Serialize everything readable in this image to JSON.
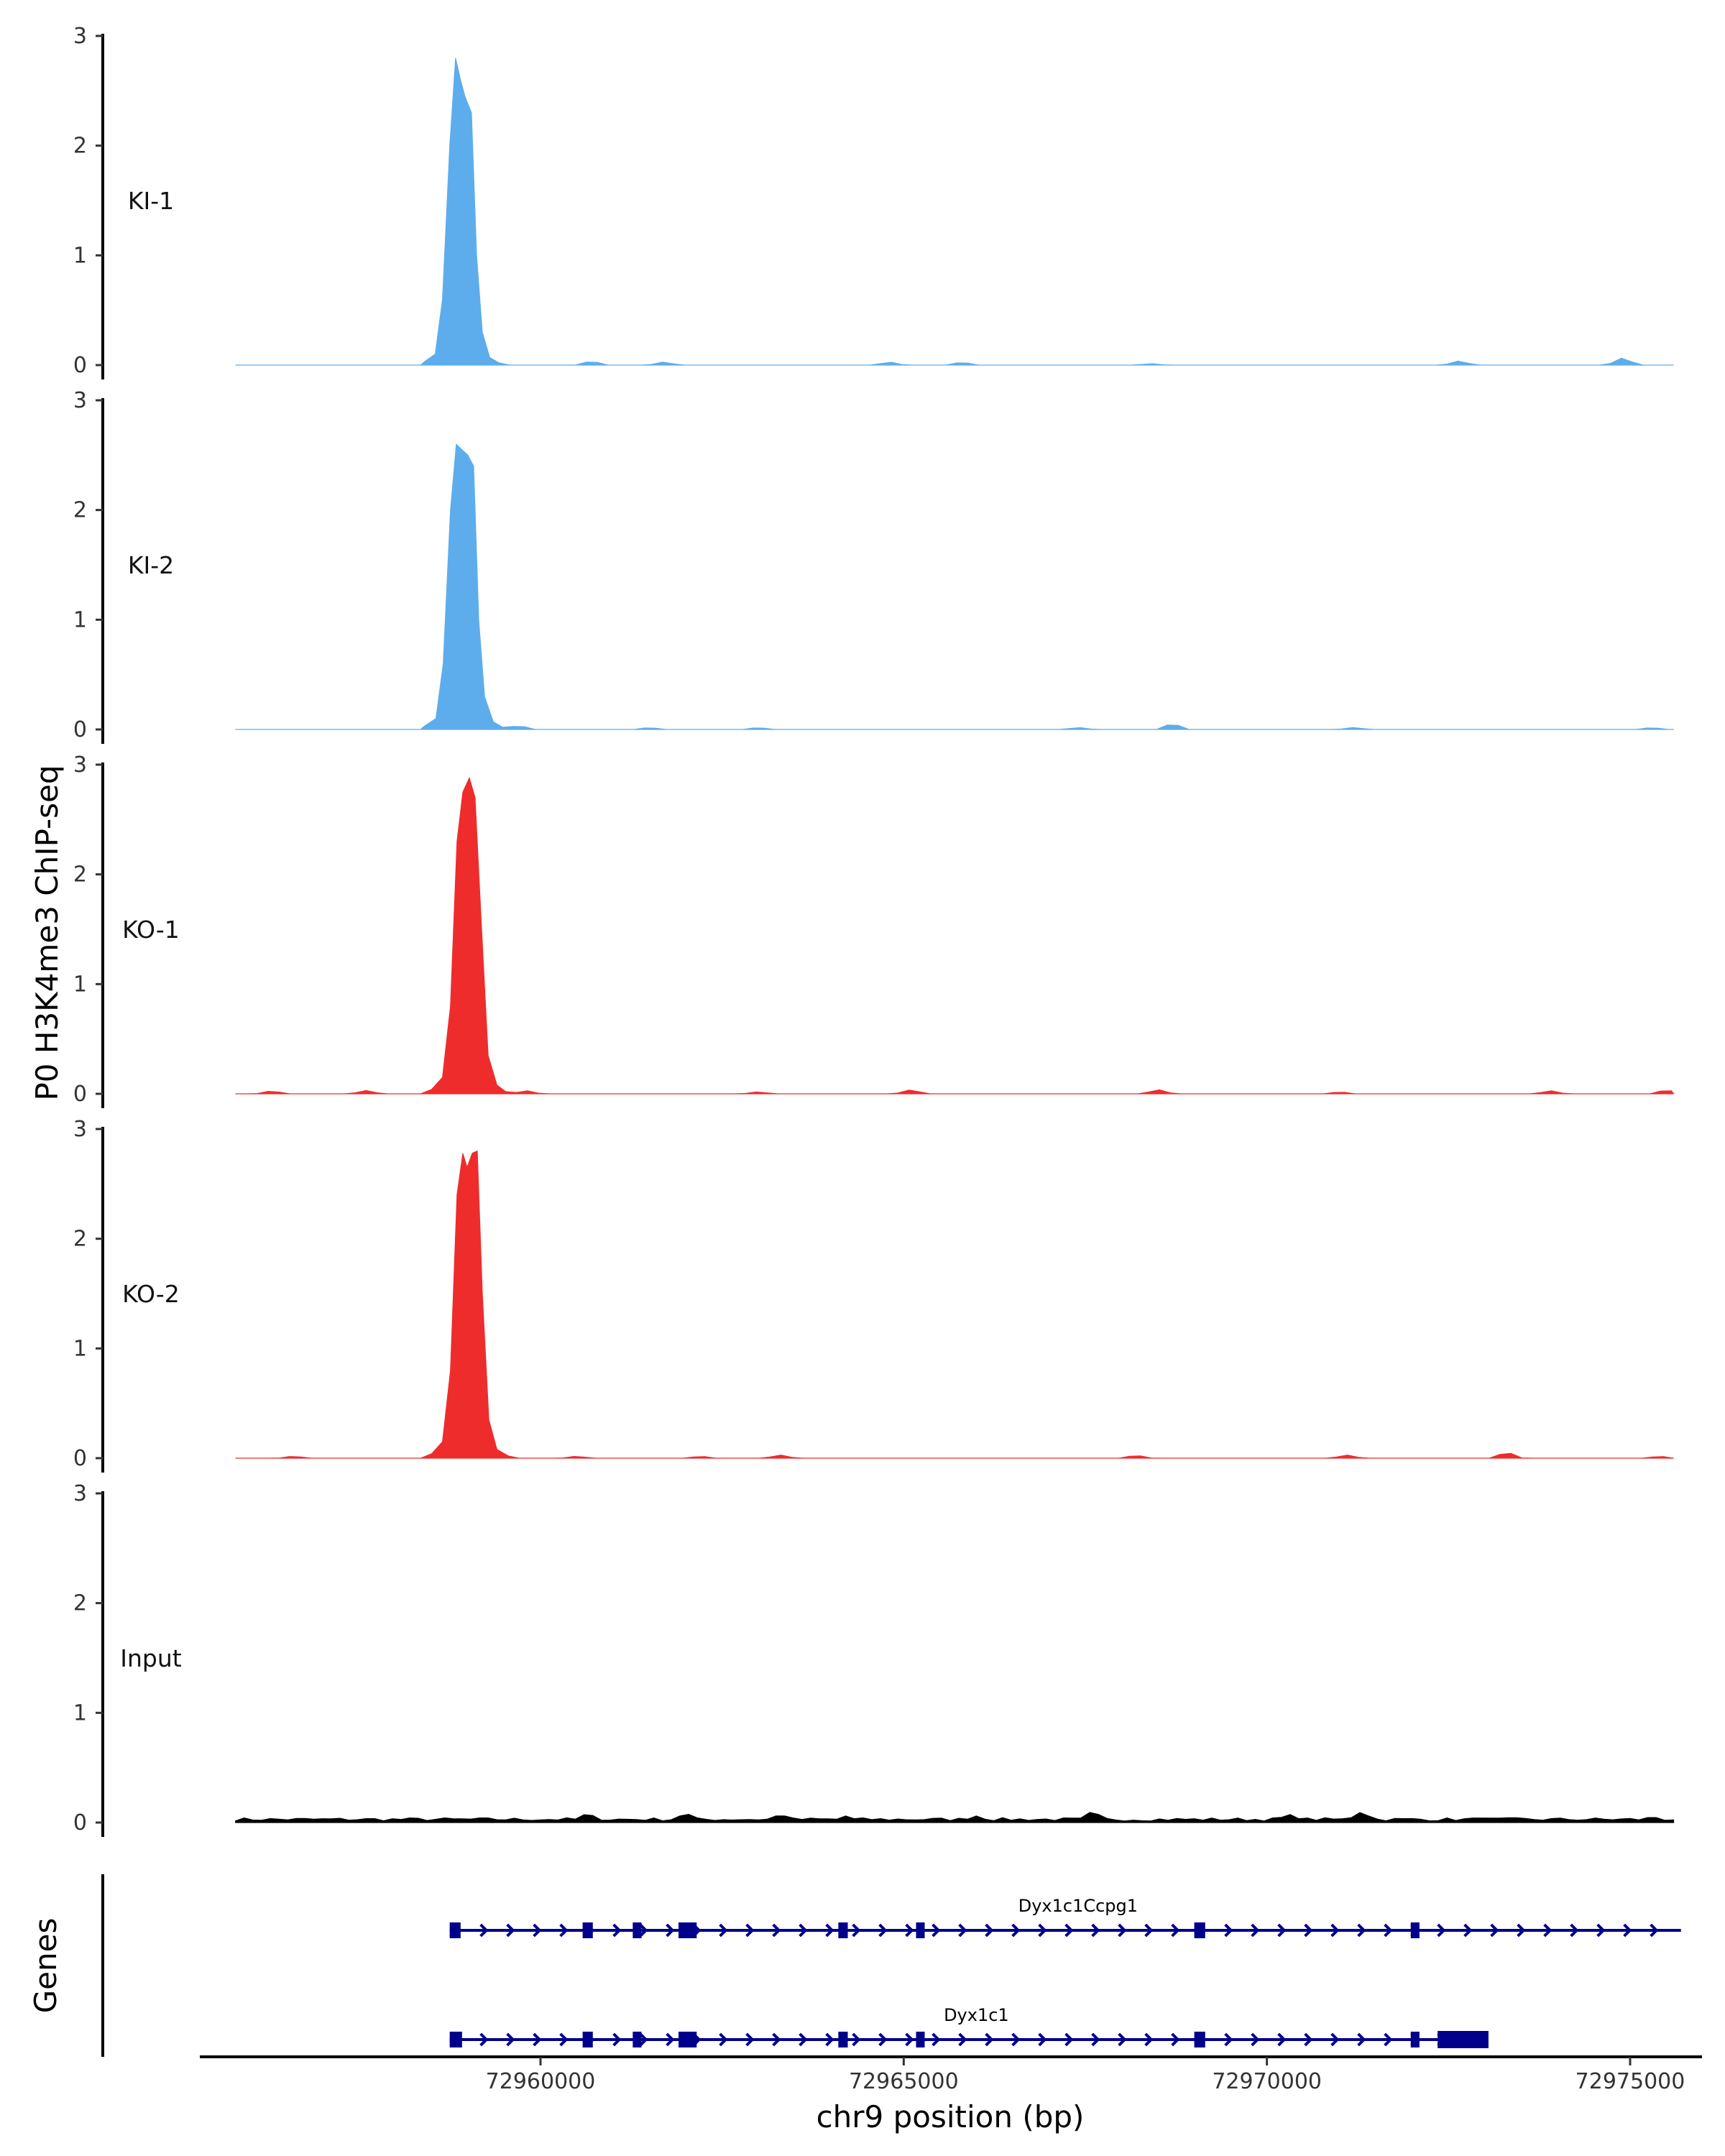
{
  "chart_data": {
    "type": "area",
    "ylabel": "P0 H3K4me3 ChIP-seq",
    "xlabel": "chr9 position (bp)",
    "genes_label": "Genes",
    "xlim": [
      72955000,
      72976500
    ],
    "ylim": [
      0,
      3
    ],
    "yticks": [
      "0",
      "1",
      "2",
      "3"
    ],
    "xticks": [
      72960000,
      72965000,
      72970000,
      72975000
    ],
    "xtick_labels": [
      "72960000",
      "72965000",
      "72970000",
      "72975000"
    ],
    "tracks": [
      {
        "name": "KI-1",
        "color": "#5DADEC",
        "x": [
          72958400,
          72958550,
          72958650,
          72958750,
          72958830,
          72958900,
          72958960,
          72959050,
          72959120,
          72959200,
          72959300,
          72959430
        ],
        "y": [
          0.03,
          0.1,
          0.6,
          2.0,
          2.8,
          2.6,
          2.45,
          2.3,
          1.0,
          0.3,
          0.07,
          0.02
        ],
        "background": [
          {
            "x": 72960700,
            "h": 0.04
          },
          {
            "x": 72961700,
            "h": 0.03
          },
          {
            "x": 72964800,
            "h": 0.03
          },
          {
            "x": 72965800,
            "h": 0.03
          },
          {
            "x": 72968400,
            "h": 0.015
          },
          {
            "x": 72972650,
            "h": 0.04
          },
          {
            "x": 72974900,
            "h": 0.07
          }
        ]
      },
      {
        "name": "KI-2",
        "color": "#5DADEC",
        "x": [
          72958400,
          72958560,
          72958660,
          72958760,
          72958840,
          72958920,
          72959000,
          72959080,
          72959150,
          72959230,
          72959350,
          72959480
        ],
        "y": [
          0.03,
          0.1,
          0.6,
          2.0,
          2.6,
          2.55,
          2.5,
          2.4,
          1.0,
          0.3,
          0.07,
          0.02
        ],
        "background": [
          {
            "x": 72959700,
            "h": 0.04
          },
          {
            "x": 72961500,
            "h": 0.02
          },
          {
            "x": 72963000,
            "h": 0.02
          },
          {
            "x": 72967400,
            "h": 0.02
          },
          {
            "x": 72968700,
            "h": 0.06
          },
          {
            "x": 72971200,
            "h": 0.02
          },
          {
            "x": 72975300,
            "h": 0.02
          }
        ]
      },
      {
        "name": "KO-1",
        "color": "#EE2C2C",
        "x": [
          72958500,
          72958650,
          72958760,
          72958850,
          72958930,
          72959020,
          72959100,
          72959190,
          72959280,
          72959400,
          72959520
        ],
        "y": [
          0.04,
          0.15,
          0.8,
          2.3,
          2.75,
          2.88,
          2.7,
          1.5,
          0.35,
          0.08,
          0.02
        ],
        "background": [
          {
            "x": 72956300,
            "h": 0.03
          },
          {
            "x": 72957600,
            "h": 0.03
          },
          {
            "x": 72959800,
            "h": 0.03
          },
          {
            "x": 72963000,
            "h": 0.02
          },
          {
            "x": 72965100,
            "h": 0.04
          },
          {
            "x": 72968500,
            "h": 0.04
          },
          {
            "x": 72971000,
            "h": 0.02
          },
          {
            "x": 72973900,
            "h": 0.03
          },
          {
            "x": 72975500,
            "h": 0.04
          }
        ]
      },
      {
        "name": "KO-2",
        "color": "#EE2C2C",
        "x": [
          72958500,
          72958650,
          72958760,
          72958850,
          72958930,
          72958990,
          72959060,
          72959130,
          72959200,
          72959290,
          72959400,
          72959560
        ],
        "y": [
          0.04,
          0.15,
          0.8,
          2.4,
          2.78,
          2.65,
          2.78,
          2.8,
          1.5,
          0.35,
          0.08,
          0.02
        ],
        "background": [
          {
            "x": 72956600,
            "h": 0.02
          },
          {
            "x": 72960500,
            "h": 0.02
          },
          {
            "x": 72962200,
            "h": 0.02
          },
          {
            "x": 72963300,
            "h": 0.03
          },
          {
            "x": 72968200,
            "h": 0.03
          },
          {
            "x": 72971100,
            "h": 0.03
          },
          {
            "x": 72973300,
            "h": 0.06
          },
          {
            "x": 72975400,
            "h": 0.02
          }
        ]
      },
      {
        "name": "Input",
        "color": "#000000",
        "x": [],
        "y": [],
        "noise_amplitude": 0.06,
        "background": [
          {
            "x": 72960650,
            "h": 0.09
          },
          {
            "x": 72962000,
            "h": 0.09
          },
          {
            "x": 72963300,
            "h": 0.08
          },
          {
            "x": 72964200,
            "h": 0.06
          },
          {
            "x": 72966000,
            "h": 0.06
          },
          {
            "x": 72967600,
            "h": 0.11
          },
          {
            "x": 72970300,
            "h": 0.08
          },
          {
            "x": 72971300,
            "h": 0.1
          },
          {
            "x": 72973000,
            "h": 0.05
          },
          {
            "x": 72975300,
            "h": 0.06
          }
        ]
      }
    ],
    "genes": [
      {
        "name": "Dyx1c1Ccpg1",
        "start": 72958750,
        "end": 72975700,
        "strand": "+",
        "exons": [
          [
            72958750,
            72958900
          ],
          [
            72960580,
            72960720
          ],
          [
            72961270,
            72961390
          ],
          [
            72961900,
            72962150
          ],
          [
            72964100,
            72964230
          ],
          [
            72965170,
            72965280
          ],
          [
            72969000,
            72969150
          ],
          [
            72971980,
            72972100
          ]
        ]
      },
      {
        "name": "Dyx1c1",
        "start": 72958750,
        "end": 72973000,
        "strand": "+",
        "exons": [
          [
            72958750,
            72958920
          ],
          [
            72960580,
            72960720
          ],
          [
            72961270,
            72961390
          ],
          [
            72961900,
            72962150
          ],
          [
            72964100,
            72964230
          ],
          [
            72965170,
            72965280
          ],
          [
            72969000,
            72969150
          ],
          [
            72971980,
            72972100
          ],
          [
            72972350,
            72973050
          ]
        ]
      }
    ],
    "gene_color": "#00008B"
  }
}
